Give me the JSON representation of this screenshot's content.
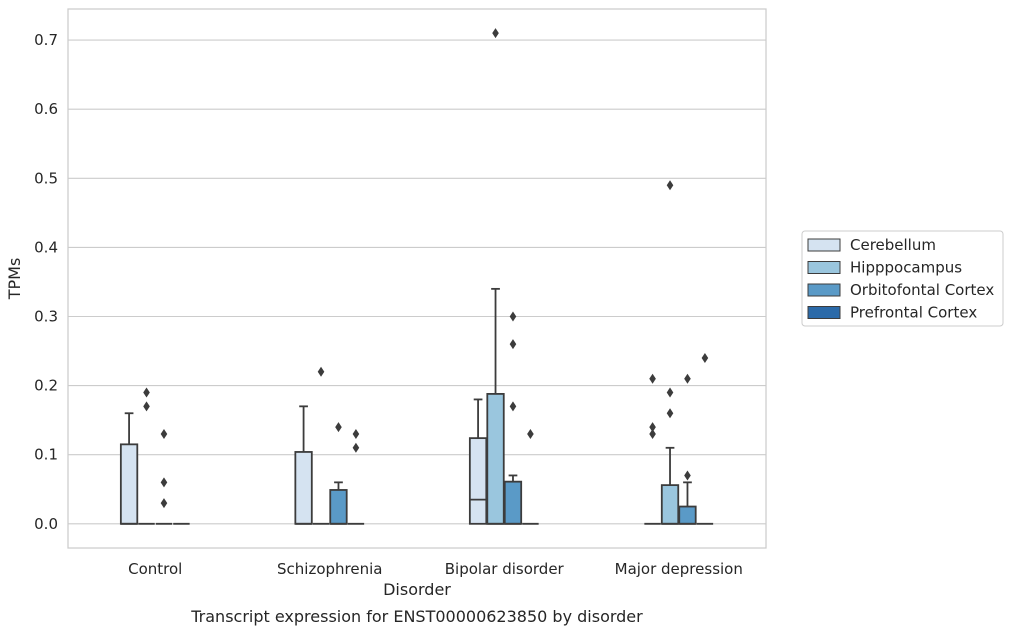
{
  "caption": "Transcript expression for ENST00000623850 by disorder",
  "chart_data": {
    "type": "boxplot",
    "xlabel": "Disorder",
    "ylabel": "TPMs",
    "ylim": [
      -0.035,
      0.745
    ],
    "yticks": [
      0.0,
      0.1,
      0.2,
      0.3,
      0.4,
      0.5,
      0.6,
      0.7
    ],
    "ytick_labels": [
      "0.0",
      "0.1",
      "0.2",
      "0.3",
      "0.4",
      "0.5",
      "0.6",
      "0.7"
    ],
    "grid": "horizontal",
    "legend_position": "right",
    "categories": [
      "Control",
      "Schizophrenia",
      "Bipolar disorder",
      "Major depression"
    ],
    "series": [
      {
        "name": "Cerebellum",
        "color": "#d5e3f1",
        "boxes": [
          {
            "q1": 0.0,
            "median": 0.0,
            "q3": 0.115,
            "whisker_low": 0.0,
            "whisker_high": 0.16,
            "outliers": []
          },
          {
            "q1": 0.0,
            "median": 0.0,
            "q3": 0.104,
            "whisker_low": 0.0,
            "whisker_high": 0.17,
            "outliers": []
          },
          {
            "q1": 0.0,
            "median": 0.035,
            "q3": 0.124,
            "whisker_low": 0.0,
            "whisker_high": 0.18,
            "outliers": []
          },
          {
            "q1": 0.0,
            "median": 0.0,
            "q3": 0.0,
            "whisker_low": 0.0,
            "whisker_high": 0.0,
            "outliers": [
              0.13,
              0.14,
              0.21
            ]
          }
        ]
      },
      {
        "name": "Hipppocampus",
        "color": "#9ac6de",
        "boxes": [
          {
            "q1": 0.0,
            "median": 0.0,
            "q3": 0.0,
            "whisker_low": 0.0,
            "whisker_high": 0.0,
            "outliers": [
              0.17,
              0.19
            ]
          },
          {
            "q1": 0.0,
            "median": 0.0,
            "q3": 0.0,
            "whisker_low": 0.0,
            "whisker_high": 0.0,
            "outliers": [
              0.22
            ]
          },
          {
            "q1": 0.0,
            "median": 0.0,
            "q3": 0.188,
            "whisker_low": 0.0,
            "whisker_high": 0.34,
            "outliers": [
              0.71
            ]
          },
          {
            "q1": 0.0,
            "median": 0.0,
            "q3": 0.056,
            "whisker_low": 0.0,
            "whisker_high": 0.11,
            "outliers": [
              0.16,
              0.19,
              0.49
            ]
          }
        ]
      },
      {
        "name": "Orbitofontal Cortex",
        "color": "#5a9ac7",
        "boxes": [
          {
            "q1": 0.0,
            "median": 0.0,
            "q3": 0.0,
            "whisker_low": 0.0,
            "whisker_high": 0.0,
            "outliers": [
              0.03,
              0.06,
              0.13
            ]
          },
          {
            "q1": 0.0,
            "median": 0.0,
            "q3": 0.049,
            "whisker_low": 0.0,
            "whisker_high": 0.06,
            "outliers": [
              0.14
            ]
          },
          {
            "q1": 0.0,
            "median": 0.0,
            "q3": 0.061,
            "whisker_low": 0.0,
            "whisker_high": 0.07,
            "outliers": [
              0.17,
              0.26,
              0.3
            ]
          },
          {
            "q1": 0.0,
            "median": 0.0,
            "q3": 0.025,
            "whisker_low": 0.0,
            "whisker_high": 0.06,
            "outliers": [
              0.07,
              0.21
            ]
          }
        ]
      },
      {
        "name": "Prefrontal Cortex",
        "color": "#2b6aa9",
        "boxes": [
          {
            "q1": 0.0,
            "median": 0.0,
            "q3": 0.0,
            "whisker_low": 0.0,
            "whisker_high": 0.0,
            "outliers": []
          },
          {
            "q1": 0.0,
            "median": 0.0,
            "q3": 0.0,
            "whisker_low": 0.0,
            "whisker_high": 0.0,
            "outliers": [
              0.11,
              0.13
            ]
          },
          {
            "q1": 0.0,
            "median": 0.0,
            "q3": 0.0,
            "whisker_low": 0.0,
            "whisker_high": 0.0,
            "outliers": [
              0.13
            ]
          },
          {
            "q1": 0.0,
            "median": 0.0,
            "q3": 0.0,
            "whisker_low": 0.0,
            "whisker_high": 0.0,
            "outliers": [
              0.24
            ]
          }
        ]
      }
    ]
  }
}
